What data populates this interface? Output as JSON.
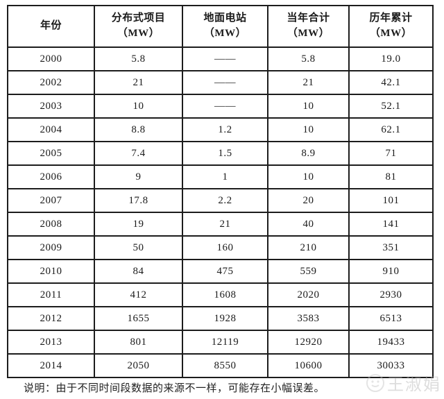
{
  "table": {
    "headers": [
      {
        "line1": "年份",
        "line2": ""
      },
      {
        "line1": "分布式项目",
        "line2": "（MW）"
      },
      {
        "line1": "地面电站",
        "line2": "（MW）"
      },
      {
        "line1": "当年合计",
        "line2": "（MW）"
      },
      {
        "line1": "历年累计",
        "line2": "（MW）"
      }
    ],
    "rows": [
      [
        "2000",
        "5.8",
        "——",
        "5.8",
        "19.0"
      ],
      [
        "2002",
        "21",
        "——",
        "21",
        "42.1"
      ],
      [
        "2003",
        "10",
        "——",
        "10",
        "52.1"
      ],
      [
        "2004",
        "8.8",
        "1.2",
        "10",
        "62.1"
      ],
      [
        "2005",
        "7.4",
        "1.5",
        "8.9",
        "71"
      ],
      [
        "2006",
        "9",
        "1",
        "10",
        "81"
      ],
      [
        "2007",
        "17.8",
        "2.2",
        "20",
        "101"
      ],
      [
        "2008",
        "19",
        "21",
        "40",
        "141"
      ],
      [
        "2009",
        "50",
        "160",
        "210",
        "351"
      ],
      [
        "2010",
        "84",
        "475",
        "559",
        "910"
      ],
      [
        "2011",
        "412",
        "1608",
        "2020",
        "2930"
      ],
      [
        "2012",
        "1655",
        "1928",
        "3583",
        "6513"
      ],
      [
        "2013",
        "801",
        "12119",
        "12920",
        "19433"
      ],
      [
        "2014",
        "2050",
        "8550",
        "10600",
        "30033"
      ]
    ]
  },
  "footer": {
    "note": "说明：由于不同时间段数据的来源不一样，可能存在小幅误差。"
  },
  "watermark": {
    "text": "王淑娟"
  },
  "colors": {
    "border": "#1c1c1c",
    "text": "#1a1a1a",
    "watermark": "#b5b5b5"
  }
}
